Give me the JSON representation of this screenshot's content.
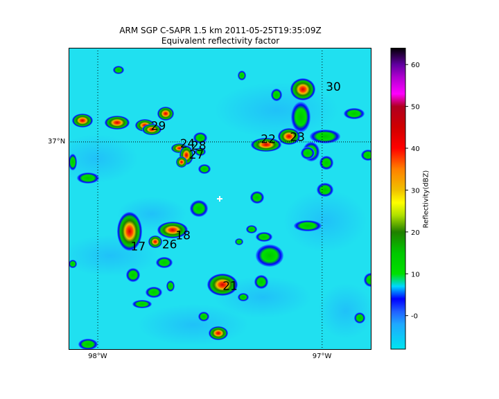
{
  "title": "ARM SGP C-SAPR 1.5 km 2011-05-25T19:35:09Z",
  "subtitle": "Equivalent reflectivity factor",
  "map": {
    "lon_ticks": [
      {
        "label": "98°W",
        "lon": -98
      },
      {
        "label": "97°W",
        "lon": -97
      }
    ],
    "lat_ticks": [
      {
        "label": "37°N",
        "lat": 37
      }
    ],
    "background_color": "#20e0f0",
    "cell_labels": [
      {
        "id": "30",
        "lon": -96.95,
        "lat": 37.25
      },
      {
        "id": "29",
        "lon": -97.73,
        "lat": 37.07
      },
      {
        "id": "22",
        "lon": -97.24,
        "lat": 37.01
      },
      {
        "id": "23",
        "lon": -97.11,
        "lat": 37.02
      },
      {
        "id": "24",
        "lon": -97.6,
        "lat": 36.99
      },
      {
        "id": "28",
        "lon": -97.55,
        "lat": 36.98
      },
      {
        "id": "27",
        "lon": -97.56,
        "lat": 36.94
      },
      {
        "id": "18",
        "lon": -97.62,
        "lat": 36.57
      },
      {
        "id": "26",
        "lon": -97.68,
        "lat": 36.53
      },
      {
        "id": "17",
        "lon": -97.82,
        "lat": 36.52
      },
      {
        "id": "21",
        "lon": -97.41,
        "lat": 36.34
      }
    ]
  },
  "colorbar": {
    "label": "Reflectivity(dBZ)",
    "ticks": [
      "-0",
      "10",
      "20",
      "30",
      "40",
      "50",
      "60"
    ],
    "tick_values": [
      0,
      10,
      20,
      30,
      40,
      50,
      60
    ],
    "range": [
      -8,
      64
    ],
    "stops": [
      {
        "v": -8,
        "color": "#00e5f0"
      },
      {
        "v": -2,
        "color": "#1fa8ff"
      },
      {
        "v": 1,
        "color": "#2060ff"
      },
      {
        "v": 4,
        "color": "#0000ff"
      },
      {
        "v": 7,
        "color": "#00d8ff"
      },
      {
        "v": 10,
        "color": "#00e000"
      },
      {
        "v": 15,
        "color": "#00c800"
      },
      {
        "v": 20,
        "color": "#208000"
      },
      {
        "v": 24,
        "color": "#b0e000"
      },
      {
        "v": 27,
        "color": "#ffff00"
      },
      {
        "v": 30,
        "color": "#f0c000"
      },
      {
        "v": 35,
        "color": "#ff8000"
      },
      {
        "v": 40,
        "color": "#ff0000"
      },
      {
        "v": 45,
        "color": "#d00000"
      },
      {
        "v": 50,
        "color": "#b00020"
      },
      {
        "v": 53,
        "color": "#ff00ff"
      },
      {
        "v": 57,
        "color": "#b000d0"
      },
      {
        "v": 60,
        "color": "#6000a0"
      },
      {
        "v": 64,
        "color": "#000000"
      }
    ]
  }
}
